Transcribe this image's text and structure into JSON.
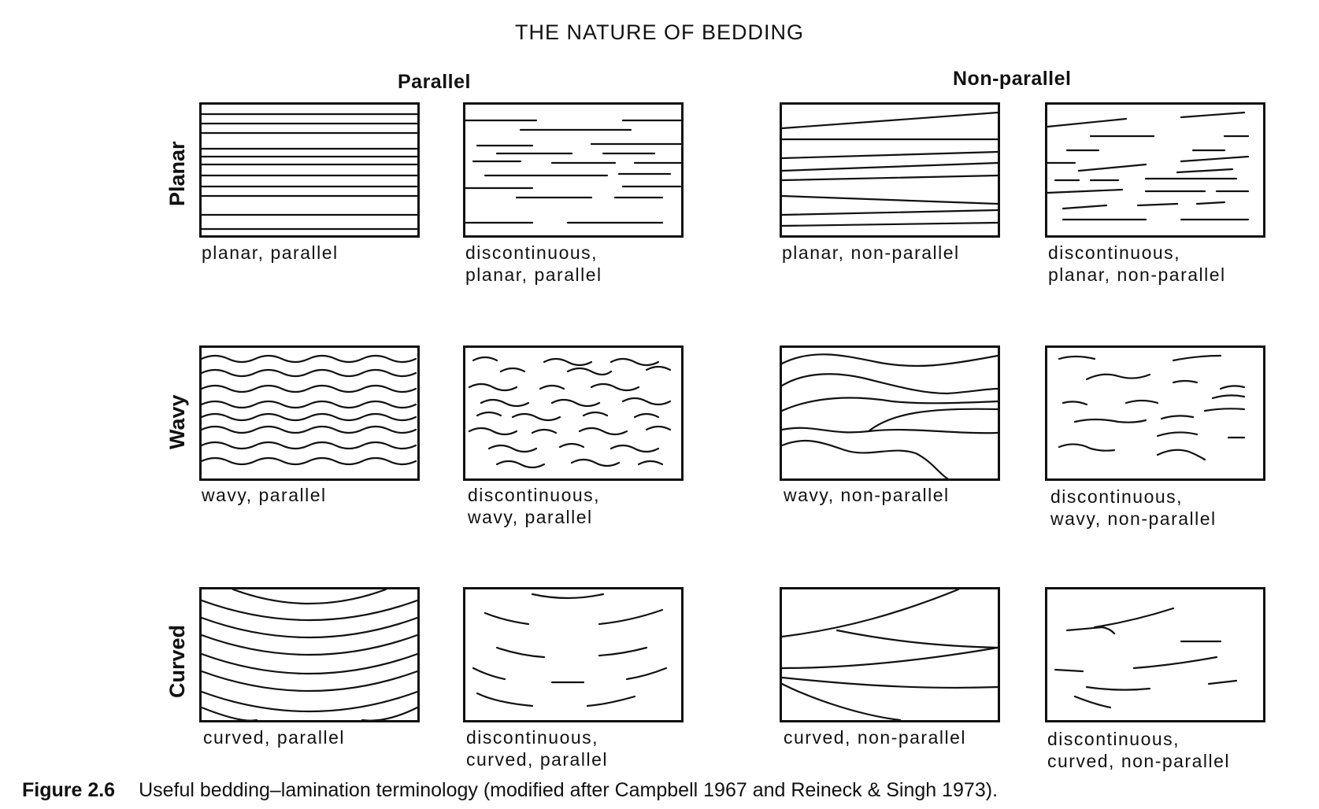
{
  "title": "THE NATURE OF BEDDING",
  "columns": {
    "parallel": "Parallel",
    "non_parallel": "Non-parallel"
  },
  "rows": {
    "planar": "Planar",
    "wavy": "Wavy",
    "curved": "Curved"
  },
  "captions": {
    "planar_parallel": "planar, parallel",
    "disc_planar_parallel_1": "discontinuous,",
    "disc_planar_parallel_2": "planar, parallel",
    "planar_nonparallel": "planar, non-parallel",
    "disc_planar_nonparallel_1": "discontinuous,",
    "disc_planar_nonparallel_2": "planar, non-parallel",
    "wavy_parallel": "wavy, parallel",
    "disc_wavy_parallel_1": "discontinuous,",
    "disc_wavy_parallel_2": "wavy, parallel",
    "wavy_nonparallel": "wavy, non-parallel",
    "disc_wavy_nonparallel_1": "discontinuous,",
    "disc_wavy_nonparallel_2": "wavy, non-parallel",
    "curved_parallel": "curved, parallel",
    "disc_curved_parallel_1": "discontinuous,",
    "disc_curved_parallel_2": "curved, parallel",
    "curved_nonparallel": "curved, non-parallel",
    "disc_curved_nonparallel_1": "discontinuous,",
    "disc_curved_nonparallel_2": "curved, non-parallel"
  },
  "figure": {
    "label": "Figure 2.6",
    "text": "Useful bedding–lamination terminology (modified after Campbell 1967 and Reineck & Singh 1973)."
  }
}
